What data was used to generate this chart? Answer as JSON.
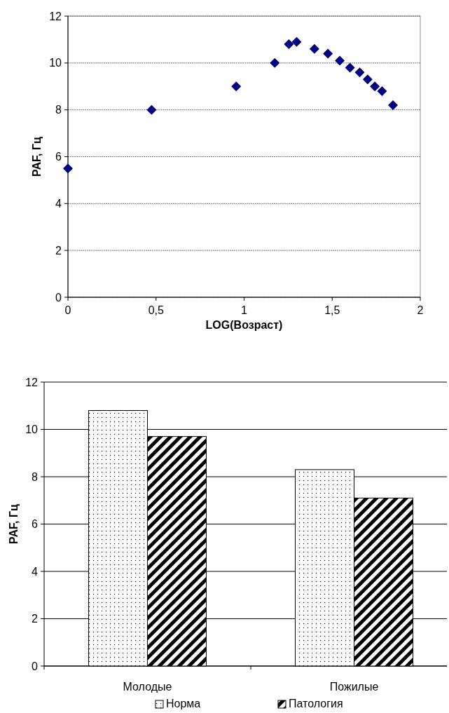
{
  "chart_data": [
    {
      "type": "scatter",
      "xlabel": "LOG(Возраст)",
      "ylabel": "PAF, Гц",
      "marker": "diamond",
      "grid": "y",
      "xlim": [
        0,
        2
      ],
      "xticks": [
        0,
        {
          "value": 0.5,
          "label": "0,5"
        },
        1,
        {
          "value": 1.5,
          "label": "1,5"
        },
        2
      ],
      "ylim": [
        0,
        12
      ],
      "yticks": [
        0,
        2,
        4,
        6,
        8,
        10,
        12
      ],
      "series": [
        {
          "color": "#000080",
          "x": [
            0,
            0.475,
            0.955,
            1.174,
            1.254,
            1.298,
            1.399,
            1.476,
            1.543,
            1.601,
            1.656,
            1.701,
            1.742,
            1.783,
            1.845
          ],
          "values": [
            5.5,
            8,
            9,
            10,
            10.8,
            10.9,
            10.6,
            10.4,
            10.1,
            9.8,
            9.6,
            9.3,
            9,
            8.8,
            8.2
          ]
        }
      ]
    },
    {
      "type": "bar",
      "ylabel": "PAF, Гц",
      "categories": [
        "Молодые",
        "Пожилые"
      ],
      "grid": "y",
      "legend": "bottom",
      "ylim": [
        0,
        12
      ],
      "yticks": [
        0,
        2,
        4,
        6,
        8,
        10,
        12
      ],
      "series": [
        {
          "name": "Норма",
          "color": "#000000",
          "values": [
            10.8,
            8.3
          ]
        },
        {
          "name": "Патология",
          "color": "#000000",
          "values": [
            9.7,
            7.1
          ]
        }
      ]
    }
  ]
}
